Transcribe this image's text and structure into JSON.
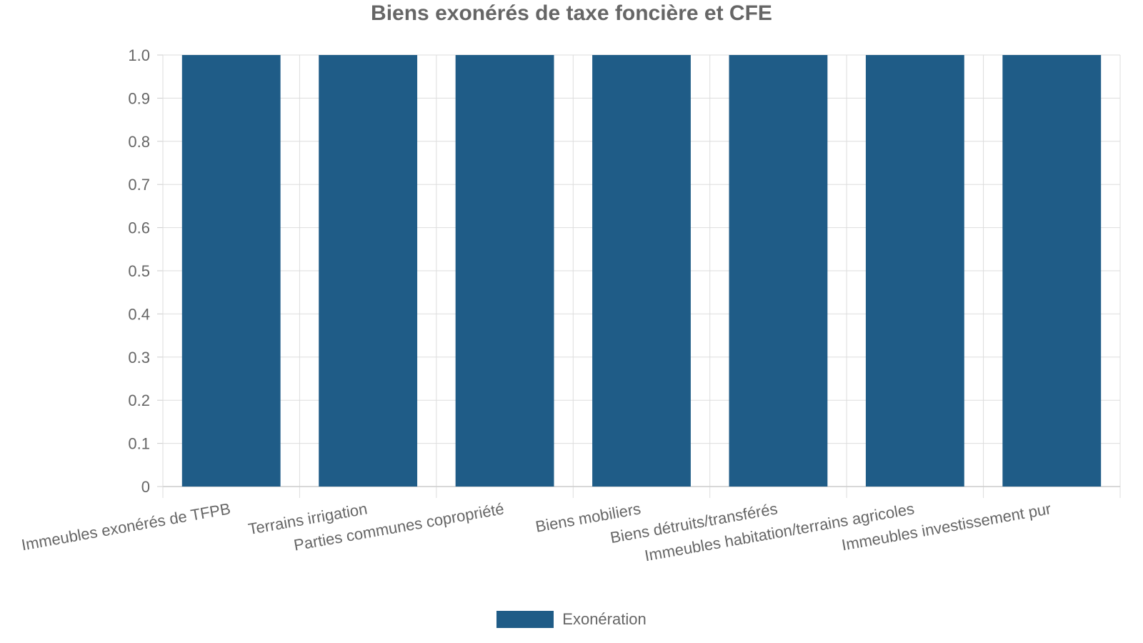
{
  "chart_data": {
    "type": "bar",
    "title": "Biens exonérés de taxe foncière et CFE",
    "xlabel": "",
    "ylabel": "",
    "categories": [
      "Immeubles exonérés de TFPB",
      "Terrains irrigation",
      "Parties communes copropriété",
      "Biens mobiliers",
      "Biens détruits/transférés",
      "Immeubles habitation/terrains agricoles",
      "Immeubles investissement pur"
    ],
    "series": [
      {
        "name": "Exonération",
        "values": [
          1,
          1,
          1,
          1,
          1,
          1,
          1
        ],
        "color": "#1f5c87"
      }
    ],
    "ylim": [
      0,
      1
    ],
    "yticks": [
      "0",
      "0.1",
      "0.2",
      "0.3",
      "0.4",
      "0.5",
      "0.6",
      "0.7",
      "0.8",
      "0.9",
      "1.0"
    ],
    "grid": true,
    "legend_position": "bottom"
  }
}
